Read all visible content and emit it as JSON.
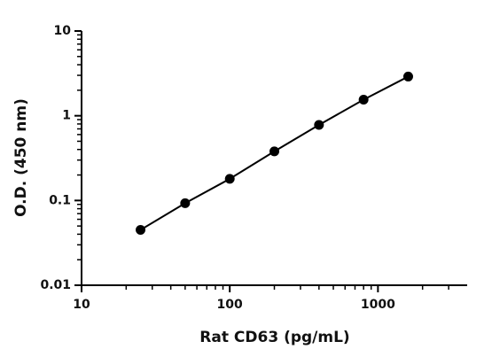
{
  "chart_data": {
    "type": "scatter",
    "x_label": "Rat CD63 (pg/mL)",
    "y_label": "O.D. (450 nm)",
    "x": [
      25,
      50,
      100,
      200,
      400,
      800,
      1600
    ],
    "series": [
      {
        "color": "#000000",
        "values": [
          0.045,
          0.093,
          0.18,
          0.38,
          0.78,
          1.55,
          2.9
        ]
      }
    ],
    "xlog": true,
    "ylog": true,
    "xlim": [
      10,
      4000
    ],
    "ylim": [
      0.01,
      10
    ],
    "xticks": [
      10,
      100,
      1000
    ],
    "yticks": [
      0.01,
      0.1,
      1,
      10
    ],
    "minor_ticks": true,
    "connect_points": true
  }
}
